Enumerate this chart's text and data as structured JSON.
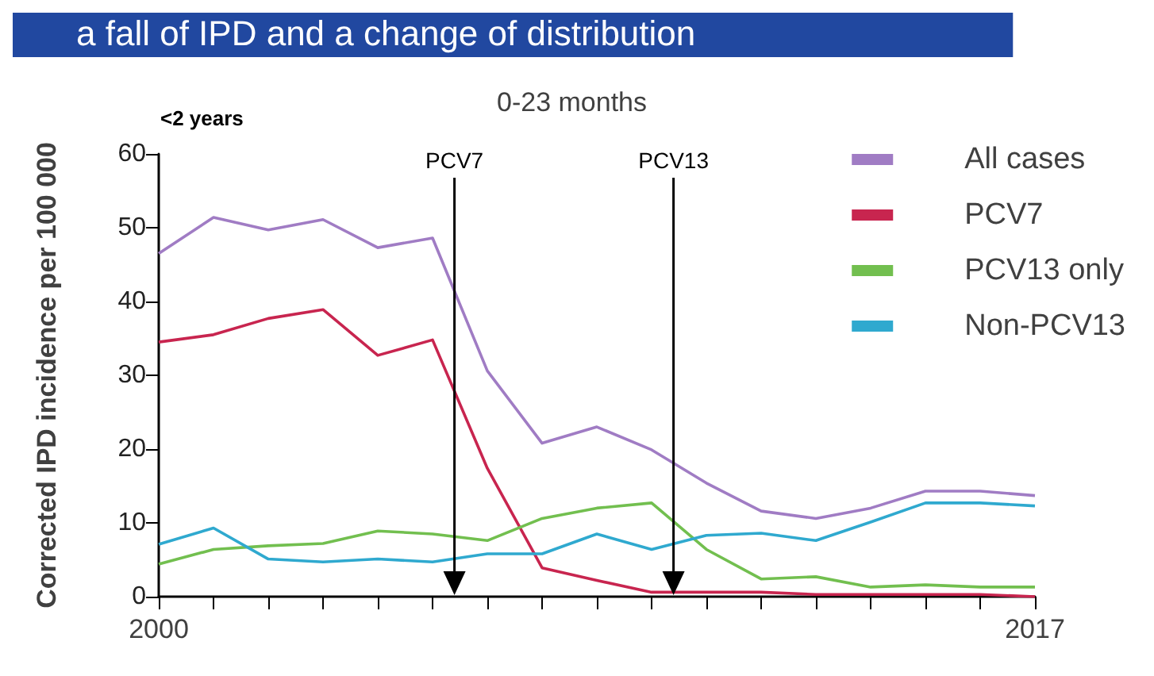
{
  "chart_data": {
    "type": "line",
    "title": "a fall of IPD and a change of distribution",
    "subtitle": "0-23 months",
    "ylabel": "Corrected IPD incidence per 100 000",
    "annotations": [
      "<2 years",
      "PCV7",
      "PCV13"
    ],
    "categories": [
      "2000",
      null,
      null,
      null,
      null,
      null,
      null,
      null,
      null,
      null,
      null,
      null,
      null,
      null,
      null,
      null,
      "2017"
    ],
    "ylim": [
      0,
      60
    ],
    "yticks": [
      0,
      10,
      20,
      30,
      40,
      50,
      60
    ],
    "series": [
      {
        "name": "All cases",
        "color": "#a07cc4",
        "values": [
          46.5,
          51.4,
          49.7,
          51.1,
          47.3,
          48.6,
          30.6,
          20.8,
          23.0,
          19.9,
          15.4,
          11.6,
          10.6,
          12.0,
          14.3,
          14.3,
          13.7
        ]
      },
      {
        "name": "PCV7",
        "color": "#c8254f",
        "values": [
          34.5,
          35.5,
          37.7,
          38.9,
          32.7,
          34.8,
          17.4,
          3.9,
          2.2,
          0.6,
          0.6,
          0.6,
          0.3,
          0.3,
          0.3,
          0.3,
          0
        ]
      },
      {
        "name": "PCV13 only",
        "color": "#72bf4f",
        "values": [
          4.4,
          6.4,
          6.9,
          7.2,
          8.9,
          8.5,
          7.6,
          10.6,
          12.0,
          12.7,
          6.4,
          2.4,
          2.7,
          1.3,
          1.6,
          1.3,
          1.3
        ]
      },
      {
        "name": "Non-PCV13",
        "color": "#2fa9cf",
        "values": [
          7.1,
          9.3,
          5.1,
          4.7,
          5.1,
          4.7,
          5.8,
          5.8,
          8.5,
          6.4,
          8.3,
          8.6,
          7.6,
          10.1,
          12.7,
          12.7,
          12.3
        ]
      }
    ],
    "grid": false,
    "legend": "top right",
    "marker": "none",
    "line_style": "solid"
  }
}
